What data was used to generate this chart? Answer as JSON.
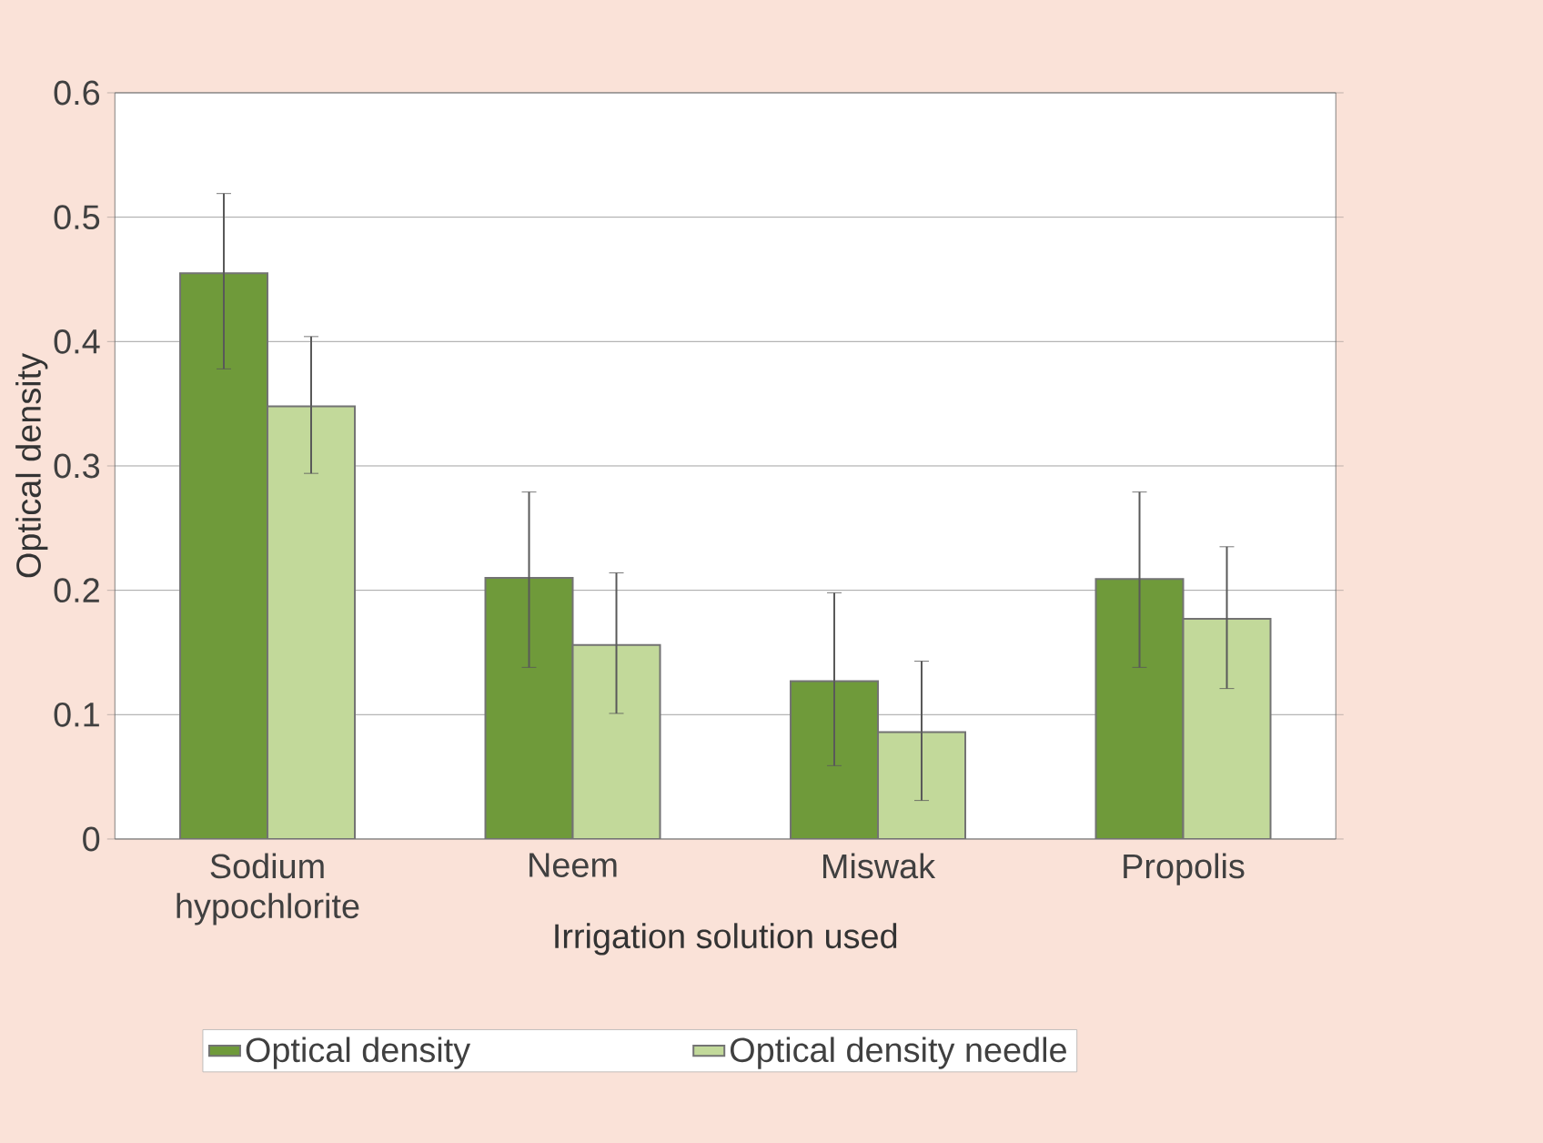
{
  "chart_data": {
    "type": "bar",
    "xlabel": "Irrigation solution used",
    "ylabel": "Optical density",
    "categories": [
      "Sodium hypochlorite",
      "Neem",
      "Miswak",
      "Propolis"
    ],
    "series": [
      {
        "name": "Optical density",
        "color": "#6f9a3a",
        "values": [
          0.455,
          0.21,
          0.127,
          0.209
        ],
        "errors": [
          [
            0.378,
            0.519
          ],
          [
            0.138,
            0.279
          ],
          [
            0.059,
            0.198
          ],
          [
            0.138,
            0.279
          ]
        ]
      },
      {
        "name": "Optical density needle",
        "color": "#c2d99a",
        "values": [
          0.348,
          0.156,
          0.086,
          0.177
        ],
        "errors": [
          [
            0.294,
            0.404
          ],
          [
            0.101,
            0.214
          ],
          [
            0.031,
            0.143
          ],
          [
            0.121,
            0.235
          ]
        ]
      }
    ],
    "ylim": [
      0,
      0.6
    ],
    "yticks": [
      0,
      0.1,
      0.2,
      0.3,
      0.4,
      0.5,
      0.6
    ],
    "grid": "y",
    "legend": "bottom"
  }
}
